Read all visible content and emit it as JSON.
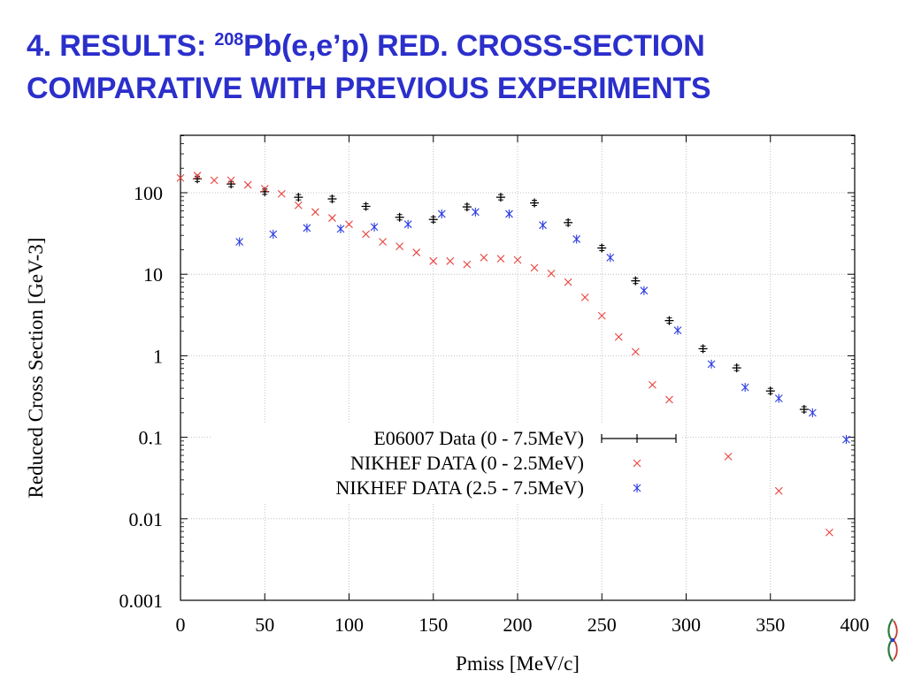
{
  "slide": {
    "title_prefix": "4. RESULTS: ",
    "title_sup": "208",
    "title_rest": "Pb(e,e’p) RED. CROSS-SECTION",
    "title_line2": "COMPARATIVE WITH PREVIOUS EXPERIMENTS"
  },
  "colors": {
    "title": "#2b2fcb",
    "e06007": "#000000",
    "nikhef_low": "#e8413c",
    "nikhef_high": "#2b3be0",
    "grid": "#b4b4b4"
  },
  "chart_data": {
    "type": "scatter",
    "title": "",
    "xlabel": "Pmiss [MeV/c]",
    "ylabel": "Reduced Cross Section [GeV-3]",
    "xlim": [
      0,
      400
    ],
    "ylim": [
      0.001,
      500
    ],
    "yscale": "log",
    "grid": true,
    "legend_position": "bottom-center",
    "x_ticks": [
      "0",
      "50",
      "100",
      "150",
      "200",
      "250",
      "300",
      "350",
      "400"
    ],
    "y_ticks": [
      "100",
      "10",
      "1",
      "0.1",
      "0.01",
      "0.001"
    ],
    "series": [
      {
        "name": "E06007 Data (0 - 7.5MeV)",
        "marker": "plus-errorbar",
        "color": "#000000",
        "x": [
          10,
          30,
          50,
          70,
          90,
          110,
          130,
          150,
          170,
          190,
          210,
          230,
          250,
          270,
          290,
          310,
          330,
          350,
          370
        ],
        "y": [
          148,
          128,
          103,
          88,
          84,
          68,
          50,
          47,
          67,
          88,
          75,
          43,
          21,
          8.3,
          2.7,
          1.22,
          0.71,
          0.37,
          0.22
        ]
      },
      {
        "name": "NIKHEF DATA (0 - 2.5MeV)",
        "marker": "x",
        "color": "#e8413c",
        "x": [
          0,
          10,
          20,
          30,
          40,
          50,
          60,
          70,
          80,
          90,
          100,
          110,
          120,
          130,
          140,
          150,
          160,
          170,
          180,
          190,
          200,
          210,
          220,
          230,
          240,
          250,
          260,
          270,
          280,
          290,
          325,
          355,
          385
        ],
        "y": [
          152,
          162,
          142,
          142,
          125,
          112,
          97,
          70,
          58,
          49,
          41,
          31,
          25,
          22,
          18.5,
          14.5,
          14.5,
          13.2,
          16,
          15.5,
          15,
          12,
          10.2,
          8,
          5.2,
          3.1,
          1.7,
          1.12,
          0.44,
          0.29,
          0.058,
          0.022,
          0.0068
        ]
      },
      {
        "name": "NIKHEF DATA (2.5 - 7.5MeV)",
        "marker": "asterisk",
        "color": "#2b3be0",
        "x": [
          35,
          55,
          75,
          95,
          115,
          135,
          155,
          175,
          195,
          215,
          235,
          255,
          275,
          295,
          315,
          335,
          355,
          375,
          395
        ],
        "y": [
          25,
          31,
          37,
          36,
          38,
          41,
          55,
          58,
          55,
          40,
          27,
          16,
          6.3,
          2.05,
          0.79,
          0.41,
          0.3,
          0.2,
          0.094
        ]
      }
    ]
  }
}
